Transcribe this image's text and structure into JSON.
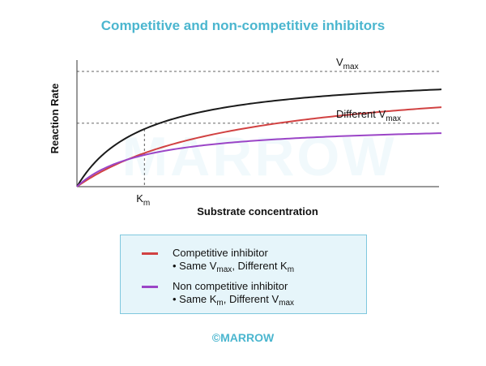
{
  "title": "Competitive and non-competitive inhibitors",
  "watermark": "MARROW",
  "footer": "©MARROW",
  "colors": {
    "title": "#4bb6cf",
    "no_inhibitor": "#1a1a1a",
    "competitive": "#d14242",
    "noncompetitive": "#9b45c7",
    "legend_bg": "#e6f5fa",
    "legend_border": "#7fc8de"
  },
  "legend": [
    {
      "name": "Competitive inhibitor",
      "note": {
        "prefix": "• Same V",
        "sub1": "max",
        "mid": ", Different K",
        "sub2": "m"
      },
      "color": "#d14242"
    },
    {
      "name": "Non competitive inhibitor",
      "note": {
        "prefix": "• Same K",
        "sub1": "m",
        "mid": ", Different V",
        "sub2": "max"
      },
      "color": "#9b45c7"
    }
  ],
  "chart_data": {
    "type": "line",
    "xlabel": "Substrate concentration",
    "ylabel": "Reaction Rate",
    "grid": false,
    "ylim": [
      0,
      1
    ],
    "xlim": [
      0,
      10
    ],
    "reference_lines": [
      {
        "axis": "y",
        "value": 1.0,
        "label_main": "V",
        "label_sub": "max"
      },
      {
        "axis": "y",
        "value": 0.55,
        "label_main": "Different V",
        "label_sub": "max"
      },
      {
        "axis": "x",
        "value": 1.85,
        "label_main": "K",
        "label_sub": "m"
      }
    ],
    "series": [
      {
        "key": "no_inhibitor",
        "vmax": 1.0,
        "km": 1.85
      },
      {
        "key": "competitive",
        "vmax": 1.0,
        "km": 4.5
      },
      {
        "key": "noncompetitive",
        "vmax": 0.55,
        "km": 1.85
      }
    ]
  }
}
